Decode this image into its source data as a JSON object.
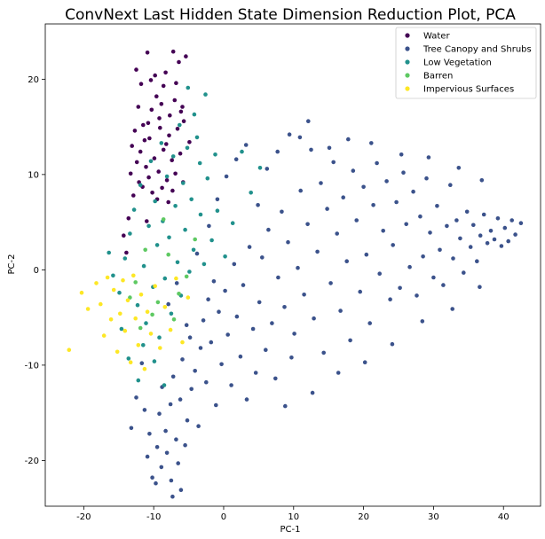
{
  "chart_data": {
    "type": "scatter",
    "title": "ConvNext Last Hidden State Dimension Reduction Plot, PCA",
    "xlabel": "PC-1",
    "ylabel": "PC-2",
    "xlim": [
      -25.5,
      45.3
    ],
    "ylim": [
      -24.8,
      25.8
    ],
    "xticks": [
      -20,
      -10,
      0,
      10,
      20,
      30,
      40
    ],
    "yticks": [
      -20,
      -10,
      0,
      10,
      20
    ],
    "grid": false,
    "legend_position": "top-right",
    "series": [
      {
        "name": "Water",
        "color": "#440154",
        "points": [
          [
            -12.5,
            21
          ],
          [
            -11.8,
            19.5
          ],
          [
            -10.9,
            22.8
          ],
          [
            -9.6,
            18.2
          ],
          [
            -8.3,
            20.7
          ],
          [
            -7.2,
            22.9
          ],
          [
            -6.4,
            21.8
          ],
          [
            -5.4,
            22.4
          ],
          [
            -6.8,
            19.6
          ],
          [
            -5.9,
            17.1
          ],
          [
            -7.7,
            16.2
          ],
          [
            -8.9,
            17.4
          ],
          [
            -10.3,
            16.8
          ],
          [
            -11.5,
            15.2
          ],
          [
            -12.7,
            14.6
          ],
          [
            -13.1,
            13
          ],
          [
            -11.9,
            12.4
          ],
          [
            -10.6,
            13.8
          ],
          [
            -9.1,
            14.9
          ],
          [
            -7.8,
            14.1
          ],
          [
            -6.6,
            14.8
          ],
          [
            -5.7,
            15.6
          ],
          [
            -4.9,
            13.4
          ],
          [
            -6.2,
            12.2
          ],
          [
            -7.4,
            11.5
          ],
          [
            -8.6,
            12.6
          ],
          [
            -9.9,
            11.7
          ],
          [
            -11.1,
            10.8
          ],
          [
            -12.4,
            11.3
          ],
          [
            -13.3,
            10.1
          ],
          [
            -12.1,
            9.2
          ],
          [
            -10.7,
            9.7
          ],
          [
            -9.3,
            10.3
          ],
          [
            -8.1,
            9.4
          ],
          [
            -6.9,
            10.1
          ],
          [
            -5.8,
            9.2
          ],
          [
            -7.3,
            8.3
          ],
          [
            -8.8,
            8.6
          ],
          [
            -10.2,
            8.1
          ],
          [
            -11.6,
            8.7
          ],
          [
            -12.9,
            7.8
          ],
          [
            -9.5,
            7.4
          ],
          [
            -7.9,
            7.1
          ],
          [
            -13.6,
            5.4
          ],
          [
            -14.3,
            3.6
          ],
          [
            -13.9,
            1.8
          ],
          [
            -11,
            5.1
          ],
          [
            -9.8,
            20.4
          ],
          [
            -8.6,
            19.3
          ],
          [
            -10.4,
            19.9
          ],
          [
            -9.2,
            15.9
          ],
          [
            -10.8,
            15.4
          ],
          [
            -7,
            17.8
          ],
          [
            -6.1,
            16.6
          ],
          [
            -12.2,
            17.1
          ],
          [
            -8.2,
            13.2
          ],
          [
            -11.3,
            13.6
          ]
        ]
      },
      {
        "name": "Tree Canopy and Shrubs",
        "color": "#3b528b",
        "points": [
          [
            -13.2,
            -16.6
          ],
          [
            -12.5,
            -13.4
          ],
          [
            -11.7,
            -9.8
          ],
          [
            -11.3,
            -14.7
          ],
          [
            -10.9,
            -19.6
          ],
          [
            -10.6,
            -17.2
          ],
          [
            -10.2,
            -21.8
          ],
          [
            -9.7,
            -22.4
          ],
          [
            -9.5,
            -18.6
          ],
          [
            -9.2,
            -15.1
          ],
          [
            -8.9,
            -20.7
          ],
          [
            -8.8,
            -12.3
          ],
          [
            -8.3,
            -16.9
          ],
          [
            -8.1,
            -19.2
          ],
          [
            -7.6,
            -14.1
          ],
          [
            -7.5,
            -22.1
          ],
          [
            -7.2,
            -11.2
          ],
          [
            -6.8,
            -17.8
          ],
          [
            -6.5,
            -20.3
          ],
          [
            -6.2,
            -13.6
          ],
          [
            -5.9,
            -9.4
          ],
          [
            -5.5,
            -18.4
          ],
          [
            -5.2,
            -15.8
          ],
          [
            -4.8,
            -7.1
          ],
          [
            -4.6,
            -12.5
          ],
          [
            -4.1,
            -10.6
          ],
          [
            -3.6,
            -16.4
          ],
          [
            -3.3,
            -8.2
          ],
          [
            -2.9,
            -5.3
          ],
          [
            -2.5,
            -11.8
          ],
          [
            -2.2,
            -3.1
          ],
          [
            -1.8,
            -7.6
          ],
          [
            -1.4,
            -1.2
          ],
          [
            -1.1,
            -14.2
          ],
          [
            -0.7,
            -4.4
          ],
          [
            -0.3,
            -9.9
          ],
          [
            0.2,
            -2.2
          ],
          [
            0.6,
            -6.8
          ],
          [
            1.1,
            -12.1
          ],
          [
            1.5,
            0.6
          ],
          [
            1.9,
            -4.9
          ],
          [
            2.4,
            -9.1
          ],
          [
            2.8,
            -1.6
          ],
          [
            3.3,
            -13.6
          ],
          [
            3.7,
            2.4
          ],
          [
            4.2,
            -6.2
          ],
          [
            4.6,
            -10.8
          ],
          [
            5.1,
            -3.4
          ],
          [
            5.5,
            1.3
          ],
          [
            6,
            -8.4
          ],
          [
            6.4,
            4.2
          ],
          [
            6.9,
            -5.6
          ],
          [
            7.4,
            -11.4
          ],
          [
            7.8,
            -0.8
          ],
          [
            8.3,
            6.1
          ],
          [
            8.7,
            -3.9
          ],
          [
            9.2,
            2.9
          ],
          [
            9.7,
            -9.2
          ],
          [
            10.1,
            -6.7
          ],
          [
            10.6,
            0.2
          ],
          [
            11,
            8.3
          ],
          [
            11.5,
            -2.6
          ],
          [
            12,
            4.8
          ],
          [
            12.5,
            12.6
          ],
          [
            12.9,
            -5.1
          ],
          [
            13.4,
            1.9
          ],
          [
            13.9,
            9.1
          ],
          [
            14.3,
            -8.7
          ],
          [
            14.8,
            6.4
          ],
          [
            15.3,
            -1.4
          ],
          [
            15.7,
            11.3
          ],
          [
            16.2,
            3.8
          ],
          [
            16.7,
            -4.3
          ],
          [
            17.1,
            7.6
          ],
          [
            17.6,
            0.9
          ],
          [
            18.1,
            -7.4
          ],
          [
            18.5,
            10.4
          ],
          [
            19,
            5.2
          ],
          [
            19.5,
            -2.3
          ],
          [
            20,
            8.7
          ],
          [
            20.4,
            1.6
          ],
          [
            20.9,
            -5.6
          ],
          [
            21.4,
            6.8
          ],
          [
            21.9,
            11.2
          ],
          [
            22.3,
            -0.4
          ],
          [
            22.8,
            4.1
          ],
          [
            23.3,
            9.3
          ],
          [
            23.8,
            -3.1
          ],
          [
            24.2,
            2.6
          ],
          [
            24.7,
            7.1
          ],
          [
            25.2,
            -1.9
          ],
          [
            25.7,
            10.2
          ],
          [
            26.1,
            4.8
          ],
          [
            26.6,
            0.3
          ],
          [
            27.1,
            8.2
          ],
          [
            27.6,
            -2.7
          ],
          [
            28.1,
            5.6
          ],
          [
            28.5,
            1.4
          ],
          [
            29,
            9.6
          ],
          [
            29.5,
            3.9
          ],
          [
            30,
            -0.8
          ],
          [
            30.5,
            6.7
          ],
          [
            30.9,
            2.1
          ],
          [
            31.4,
            -1.6
          ],
          [
            31.9,
            4.6
          ],
          [
            32.4,
            8.9
          ],
          [
            32.8,
            1.2
          ],
          [
            33.3,
            5.2
          ],
          [
            33.8,
            3.3
          ],
          [
            34.3,
            -0.3
          ],
          [
            34.8,
            6.1
          ],
          [
            35.3,
            2.4
          ],
          [
            35.7,
            4.7
          ],
          [
            36.2,
            0.9
          ],
          [
            36.7,
            3.6
          ],
          [
            37.2,
            5.8
          ],
          [
            37.7,
            2.8
          ],
          [
            38.2,
            4.1
          ],
          [
            38.7,
            3.2
          ],
          [
            39.2,
            5.4
          ],
          [
            39.7,
            2.5
          ],
          [
            40.2,
            4.4
          ],
          [
            40.7,
            3
          ],
          [
            41.2,
            5.2
          ],
          [
            41.7,
            3.7
          ],
          [
            42.5,
            4.9
          ],
          [
            -7.9,
            -3.6
          ],
          [
            -6.7,
            -1.4
          ],
          [
            -5.3,
            -5.8
          ],
          [
            -3.8,
            1.7
          ],
          [
            -2.1,
            4.6
          ],
          [
            -0.9,
            7.4
          ],
          [
            0.4,
            9.8
          ],
          [
            1.8,
            11.6
          ],
          [
            3.2,
            13.1
          ],
          [
            4.9,
            6.8
          ],
          [
            6.2,
            10.6
          ],
          [
            7.7,
            12.4
          ],
          [
            9.4,
            14.2
          ],
          [
            10.9,
            13.9
          ],
          [
            12.1,
            15.6
          ],
          [
            15.1,
            12.8
          ],
          [
            17.8,
            13.7
          ],
          [
            21.1,
            13.3
          ],
          [
            25.4,
            12.1
          ],
          [
            29.3,
            11.8
          ],
          [
            33.6,
            10.7
          ],
          [
            36.9,
            9.4
          ],
          [
            -6.1,
            -23.1
          ],
          [
            -7.3,
            -23.8
          ],
          [
            8.8,
            -14.3
          ],
          [
            12.7,
            -12.9
          ],
          [
            16.4,
            -10.8
          ],
          [
            20.2,
            -9.7
          ],
          [
            24.1,
            -7.8
          ],
          [
            28.4,
            -5.4
          ],
          [
            32.7,
            -4.1
          ],
          [
            36.6,
            -1.8
          ]
        ]
      },
      {
        "name": "Low Vegetation",
        "color": "#21918c",
        "points": [
          [
            -15.8,
            -0.6
          ],
          [
            -14.9,
            -2.4
          ],
          [
            -14.1,
            1.2
          ],
          [
            -13.4,
            3.8
          ],
          [
            -12.8,
            6.3
          ],
          [
            -12.3,
            -3.7
          ],
          [
            -11.9,
            8.9
          ],
          [
            -11.4,
            0.4
          ],
          [
            -11.1,
            -5.6
          ],
          [
            -10.7,
            4.6
          ],
          [
            -10.4,
            11.4
          ],
          [
            -10.1,
            -1.8
          ],
          [
            -9.8,
            7.2
          ],
          [
            -9.5,
            2.6
          ],
          [
            -9.2,
            -7.1
          ],
          [
            -8.9,
            13.3
          ],
          [
            -8.7,
            5.1
          ],
          [
            -8.4,
            -0.9
          ],
          [
            -8.1,
            9.8
          ],
          [
            -7.8,
            3.4
          ],
          [
            -7.5,
            -4.6
          ],
          [
            -7.2,
            11.9
          ],
          [
            -6.9,
            6.7
          ],
          [
            -6.6,
            0.8
          ],
          [
            -6.3,
            15.2
          ],
          [
            -6.1,
            -2.7
          ],
          [
            -5.8,
            9.1
          ],
          [
            -5.5,
            4.2
          ],
          [
            -5.2,
            12.8
          ],
          [
            -4.9,
            -0.2
          ],
          [
            -4.6,
            7.4
          ],
          [
            -4.3,
            2.1
          ],
          [
            -3.8,
            13.9
          ],
          [
            -3.3,
            5.8
          ],
          [
            -2.8,
            0.6
          ],
          [
            -2.3,
            9.6
          ],
          [
            -1.7,
            3.1
          ],
          [
            -0.9,
            6.2
          ],
          [
            0.2,
            1.4
          ],
          [
            1.3,
            4.9
          ],
          [
            2.6,
            12.4
          ],
          [
            3.9,
            8.1
          ],
          [
            5.2,
            10.7
          ],
          [
            -13.6,
            -9.3
          ],
          [
            -12.2,
            -11.6
          ],
          [
            -11.5,
            -7.9
          ],
          [
            -16.4,
            1.8
          ],
          [
            -14.6,
            -6.2
          ],
          [
            -9.9,
            -9.6
          ],
          [
            -8.5,
            -12.1
          ],
          [
            -4.2,
            16.3
          ],
          [
            -5.1,
            19.1
          ],
          [
            -2.6,
            18.4
          ],
          [
            -3.4,
            11.2
          ],
          [
            -1.2,
            12.1
          ]
        ]
      },
      {
        "name": "Barren",
        "color": "#5ec962",
        "points": [
          [
            -12.6,
            -1.3
          ],
          [
            -11.2,
            2.1
          ],
          [
            -9.4,
            -3.4
          ],
          [
            -7.9,
            1.6
          ],
          [
            -6.4,
            -2.5
          ],
          [
            -10.2,
            -4.7
          ],
          [
            -8.6,
            5.3
          ],
          [
            -5.3,
            -0.7
          ],
          [
            -11.9,
            -6.1
          ],
          [
            -7.1,
            -5.2
          ],
          [
            -4.1,
            3.2
          ],
          [
            -13.4,
            -2.9
          ]
        ]
      },
      {
        "name": "Impervious Surfaces",
        "color": "#fde725",
        "points": [
          [
            -22.1,
            -8.4
          ],
          [
            -20.3,
            -2.4
          ],
          [
            -19.4,
            -4.1
          ],
          [
            -18.2,
            -1.4
          ],
          [
            -17.6,
            -3.6
          ],
          [
            -17.1,
            -6.9
          ],
          [
            -16.6,
            -0.8
          ],
          [
            -16.1,
            -5.2
          ],
          [
            -15.7,
            -2.1
          ],
          [
            -15.2,
            -8.6
          ],
          [
            -14.8,
            -4.6
          ],
          [
            -14.4,
            -1.1
          ],
          [
            -14.1,
            -6.4
          ],
          [
            -13.7,
            -3.2
          ],
          [
            -13.3,
            -9.7
          ],
          [
            -12.9,
            -0.6
          ],
          [
            -12.6,
            -5.1
          ],
          [
            -12.2,
            -7.9
          ],
          [
            -11.8,
            -2.6
          ],
          [
            -11.3,
            -10.4
          ],
          [
            -10.9,
            -4.4
          ],
          [
            -10.4,
            -6.7
          ],
          [
            -9.8,
            -1.7
          ],
          [
            -9.1,
            -8.2
          ],
          [
            -8.4,
            -3.9
          ],
          [
            -7.6,
            -6.3
          ],
          [
            -6.8,
            -0.9
          ],
          [
            -5.9,
            -7.6
          ],
          [
            -5.1,
            -2.9
          ]
        ]
      }
    ]
  }
}
